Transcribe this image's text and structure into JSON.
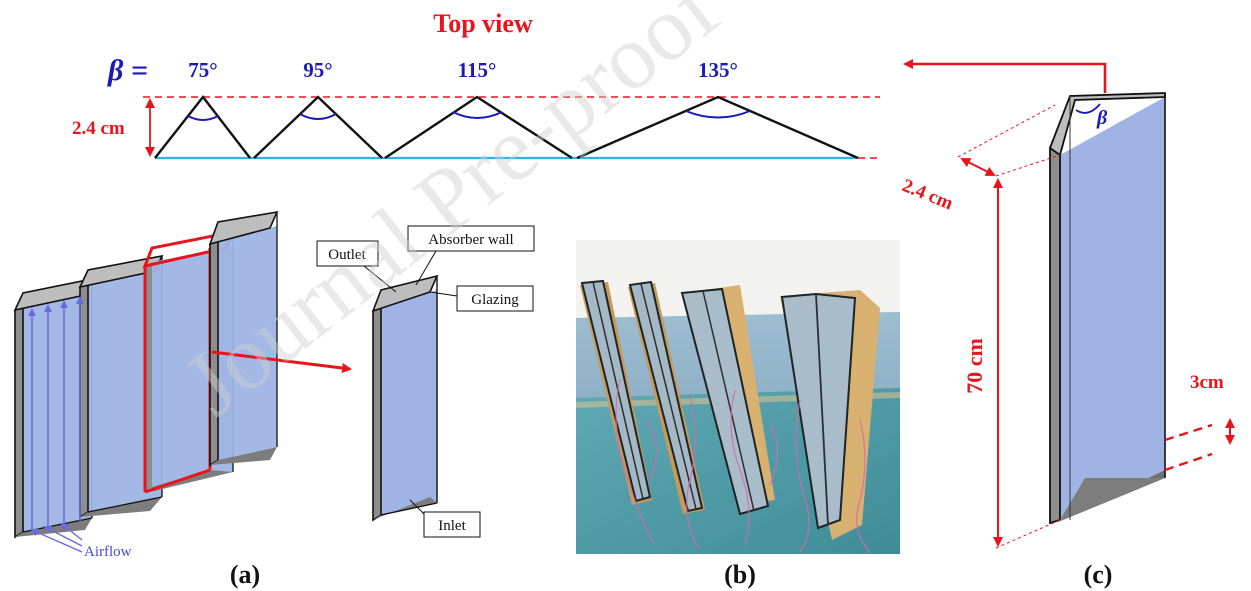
{
  "top_view": {
    "title": "Top view",
    "beta_symbol": "β =",
    "height_label": "2.4 cm",
    "angles": [
      "75°",
      "95°",
      "115°",
      "135°"
    ]
  },
  "panel_a": {
    "label": "(a)",
    "airflow": "Airflow",
    "callouts": {
      "outlet": "Outlet",
      "absorber_wall": "Absorber wall",
      "glazing": "Glazing",
      "inlet": "Inlet"
    }
  },
  "panel_b": {
    "label": "(b)"
  },
  "panel_c": {
    "label": "(c)",
    "beta": "β",
    "depth_label": "2.4 cm",
    "height_label": "70 cm",
    "gap_label": "3cm"
  },
  "colors": {
    "red": "#e8141c",
    "blue_text": "#1a1ab8",
    "glass": "#9fb4e4",
    "cyan_line": "#29b6e6"
  },
  "watermark": "Journal Pre-proof"
}
